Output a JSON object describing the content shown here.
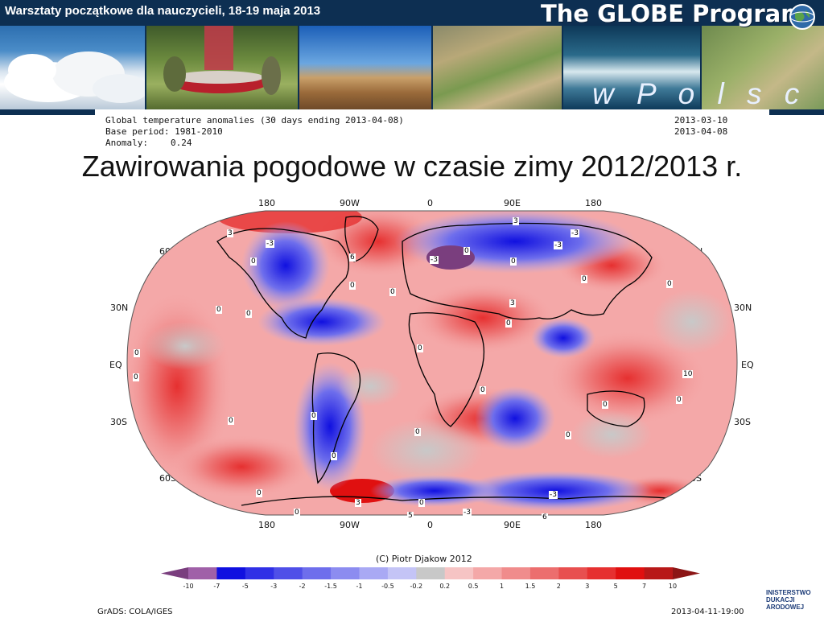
{
  "header": {
    "title": "Warsztaty początkowe dla nauczycieli, 18-19 maja 2013",
    "brand": "The GLOBE Program",
    "region": "w P o l s c e"
  },
  "slide": {
    "title": "Zawirowania pogodowe w czasie zimy 2012/2013 r."
  },
  "map": {
    "meta": {
      "line1": "Global temperature anomalies (30 days ending 2013-04-08)",
      "line2": "Base period: 1981-2010",
      "line3_label": "Anomaly:",
      "line3_value": "0.24",
      "date_start": "2013-03-10",
      "date_end": "2013-04-08"
    },
    "lon_labels": [
      "180",
      "90W",
      "0",
      "90E",
      "180"
    ],
    "lat_labels": [
      "60N",
      "30N",
      "EQ",
      "30S",
      "60S"
    ],
    "contour_labels": [
      "0",
      "3",
      "-3",
      "5",
      "6",
      "-5",
      "10"
    ],
    "credit": "(C) Piotr Djakow 2012",
    "colorbar": {
      "ticks": [
        "-10",
        "-7",
        "-5",
        "-3",
        "-2",
        "-1.5",
        "-1",
        "-0.5",
        "-0.2",
        "0.2",
        "0.5",
        "1",
        "1.5",
        "2",
        "3",
        "5",
        "7",
        "10"
      ],
      "colors": [
        "#7a3e7e",
        "#a060a8",
        "#1010e0",
        "#3030e6",
        "#4f4fe8",
        "#6e6eec",
        "#8c8cf0",
        "#a9a9f4",
        "#c4c4f6",
        "#c8c8c8",
        "#f6c4c4",
        "#f4a8a8",
        "#f08c8c",
        "#ec6e6e",
        "#e84f4f",
        "#e63030",
        "#e01010",
        "#b81818",
        "#8c1616"
      ]
    },
    "footer_left": "GrADS: COLA/IGES",
    "footer_right": "2013-04-11-19:00"
  },
  "ministry": {
    "line1": "INISTERSTWO",
    "line2": "DUKACJI",
    "line3": "ARODOWEJ"
  }
}
